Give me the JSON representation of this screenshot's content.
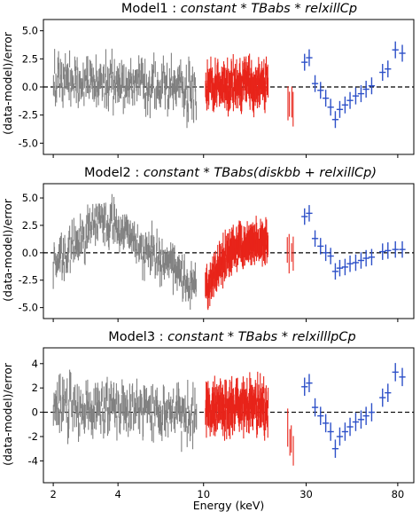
{
  "colors": {
    "gray": "#808080",
    "red": "#e8241a",
    "blue": "#2d50c8",
    "zero_line": "#000000"
  },
  "x_axis": {
    "label": "Energy (keV)",
    "scale": "log",
    "range": [
      1.8,
      95
    ],
    "ticks": [
      2,
      4,
      10,
      30,
      80
    ],
    "tick_labels": [
      "2",
      "4",
      "10",
      "30",
      "80"
    ]
  },
  "y_axis_label": "(data-model)/error",
  "chart_data": [
    {
      "type": "scatter",
      "title": "Model1 : constant * TBabs * relxillCp",
      "title_parts": {
        "prefix": "Model1 : ",
        "model": "constant * TBabs * relxillCp"
      },
      "xlabel": "",
      "ylabel": "(data-model)/error",
      "xscale": "log",
      "xlim": [
        1.8,
        95
      ],
      "ylim": [
        -6.0,
        6.0
      ],
      "yticks": [
        5.0,
        2.5,
        0.0,
        -2.5,
        -5.0
      ],
      "ytick_labels": [
        "5.0",
        "2.5",
        "0.0",
        "-2.5",
        "-5.0"
      ],
      "zero_line": true,
      "series": [
        {
          "color": "gray",
          "x_range": [
            2.0,
            9.3
          ],
          "n": 230,
          "trend": [
            [
              2.0,
              0.6
            ],
            [
              4.0,
              0.4
            ],
            [
              6.0,
              0.2
            ],
            [
              9.3,
              -0.5
            ]
          ],
          "scatter": 1.3,
          "err": 0.9
        },
        {
          "color": "red",
          "x_range": [
            10.2,
            20.0
          ],
          "n": 200,
          "trend": [
            [
              10.2,
              0.1
            ],
            [
              15.0,
              0.3
            ],
            [
              20.0,
              0.3
            ]
          ],
          "scatter": 1.1,
          "err": 1.0
        },
        {
          "color": "red",
          "x_range": [
            24.5,
            26.5
          ],
          "n": 4,
          "trend": [
            [
              24.5,
              -1.3
            ],
            [
              26.5,
              -1.8
            ]
          ],
          "scatter": 0.6,
          "err": 1.2
        },
        {
          "color": "blue",
          "points": [
            [
              29.5,
              2.2
            ],
            [
              31.0,
              2.6
            ],
            [
              33.0,
              0.3
            ],
            [
              35.0,
              -0.3
            ],
            [
              37.0,
              -1.0
            ],
            [
              39.0,
              -1.8
            ],
            [
              41.0,
              -2.9
            ],
            [
              43.0,
              -2.0
            ],
            [
              45.5,
              -1.6
            ],
            [
              48.0,
              -1.2
            ],
            [
              51.0,
              -0.8
            ],
            [
              54.0,
              -0.6
            ],
            [
              57.0,
              -0.2
            ],
            [
              60.5,
              0.1
            ],
            [
              68.0,
              1.3
            ],
            [
              72.0,
              1.6
            ],
            [
              78.0,
              3.3
            ],
            [
              84.0,
              3.0
            ]
          ],
          "err": 0.75
        }
      ]
    },
    {
      "type": "scatter",
      "title": "Model2 : constant * TBabs(diskbb + relxillCp)",
      "title_parts": {
        "prefix": "Model2 : ",
        "model": "constant * TBabs(diskbb + relxillCp)"
      },
      "xlabel": "",
      "ylabel": "(data-model)/error",
      "xscale": "log",
      "xlim": [
        1.8,
        95
      ],
      "ylim": [
        -6.0,
        6.3
      ],
      "yticks": [
        5.0,
        2.5,
        0.0,
        -2.5,
        -5.0
      ],
      "ytick_labels": [
        "5.0",
        "2.5",
        "0.0",
        "-2.5",
        "-5.0"
      ],
      "zero_line": true,
      "series": [
        {
          "color": "gray",
          "x_range": [
            2.0,
            9.3
          ],
          "n": 230,
          "trend": [
            [
              2.0,
              -0.8
            ],
            [
              2.4,
              0.2
            ],
            [
              3.0,
              2.2
            ],
            [
              3.6,
              2.8
            ],
            [
              4.5,
              1.5
            ],
            [
              5.5,
              0.0
            ],
            [
              7.0,
              -1.2
            ],
            [
              9.3,
              -3.2
            ]
          ],
          "scatter": 1.1,
          "err": 0.9
        },
        {
          "color": "red",
          "x_range": [
            10.2,
            20.0
          ],
          "n": 200,
          "trend": [
            [
              10.2,
              -3.2
            ],
            [
              12.0,
              -1.0
            ],
            [
              14.0,
              0.3
            ],
            [
              17.0,
              0.9
            ],
            [
              20.0,
              1.2
            ]
          ],
          "scatter": 0.9,
          "err": 1.0
        },
        {
          "color": "red",
          "x_range": [
            24.5,
            26.5
          ],
          "n": 4,
          "trend": [
            [
              24.5,
              0.0
            ],
            [
              26.5,
              0.3
            ]
          ],
          "scatter": 0.6,
          "err": 1.4
        },
        {
          "color": "blue",
          "points": [
            [
              29.5,
              3.3
            ],
            [
              31.0,
              3.6
            ],
            [
              33.0,
              1.3
            ],
            [
              35.0,
              0.6
            ],
            [
              37.0,
              0.0
            ],
            [
              39.0,
              -0.3
            ],
            [
              41.0,
              -1.7
            ],
            [
              43.0,
              -1.4
            ],
            [
              45.5,
              -1.3
            ],
            [
              48.0,
              -1.0
            ],
            [
              51.0,
              -0.9
            ],
            [
              54.0,
              -0.7
            ],
            [
              57.0,
              -0.5
            ],
            [
              60.5,
              -0.4
            ],
            [
              68.0,
              0.1
            ],
            [
              72.0,
              0.2
            ],
            [
              78.0,
              0.3
            ],
            [
              84.0,
              0.3
            ]
          ],
          "err": 0.75
        }
      ]
    },
    {
      "type": "scatter",
      "title": "Model3 : constant * TBabs * relxilllpCp",
      "title_parts": {
        "prefix": "Model3 : ",
        "model": "constant * TBabs * relxilllpCp"
      },
      "xlabel": "Energy (keV)",
      "ylabel": "(data-model)/error",
      "xscale": "log",
      "xlim": [
        1.8,
        95
      ],
      "ylim": [
        -5.8,
        5.3
      ],
      "yticks": [
        4,
        2,
        0,
        -2,
        -4
      ],
      "ytick_labels": [
        "4",
        "2",
        "0",
        "-2",
        "-4"
      ],
      "zero_line": true,
      "series": [
        {
          "color": "gray",
          "x_range": [
            2.0,
            9.3
          ],
          "n": 230,
          "trend": [
            [
              2.0,
              0.4
            ],
            [
              4.0,
              0.5
            ],
            [
              6.0,
              0.2
            ],
            [
              9.3,
              -0.6
            ]
          ],
          "scatter": 1.2,
          "err": 0.9
        },
        {
          "color": "red",
          "x_range": [
            10.2,
            20.0
          ],
          "n": 200,
          "trend": [
            [
              10.2,
              0.2
            ],
            [
              15.0,
              0.5
            ],
            [
              20.0,
              0.4
            ]
          ],
          "scatter": 1.2,
          "err": 1.0
        },
        {
          "color": "red",
          "x_range": [
            24.5,
            26.5
          ],
          "n": 4,
          "trend": [
            [
              24.5,
              -1.8
            ],
            [
              26.5,
              -3.0
            ]
          ],
          "scatter": 0.6,
          "err": 1.3
        },
        {
          "color": "blue",
          "points": [
            [
              29.5,
              2.1
            ],
            [
              31.0,
              2.4
            ],
            [
              33.0,
              0.4
            ],
            [
              35.0,
              -0.3
            ],
            [
              37.0,
              -0.9
            ],
            [
              39.0,
              -1.6
            ],
            [
              41.0,
              -3.0
            ],
            [
              43.0,
              -2.0
            ],
            [
              45.5,
              -1.6
            ],
            [
              48.0,
              -1.2
            ],
            [
              51.0,
              -0.8
            ],
            [
              54.0,
              -0.6
            ],
            [
              57.0,
              -0.3
            ],
            [
              60.5,
              0.0
            ],
            [
              68.0,
              1.2
            ],
            [
              72.0,
              1.6
            ],
            [
              78.0,
              3.3
            ],
            [
              84.0,
              2.9
            ]
          ],
          "err": 0.75
        }
      ]
    }
  ]
}
